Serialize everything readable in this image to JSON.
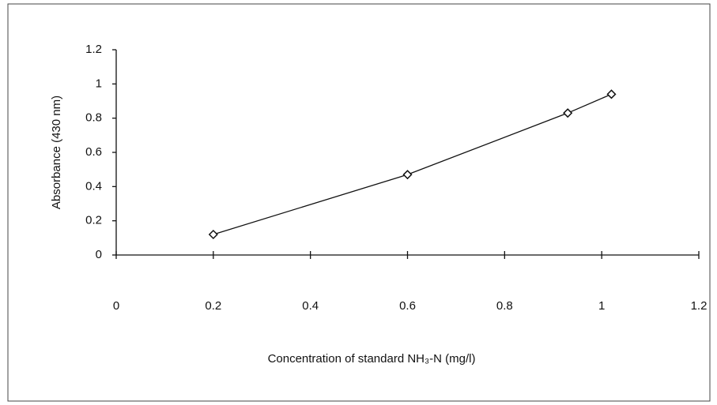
{
  "chart_data": {
    "type": "line",
    "x_label": "Concentration of standard NH₃-N (mg/l)",
    "y_label": "Absorbance (430 nm)",
    "x": [
      0.2,
      0.6,
      0.93,
      1.02
    ],
    "series": [
      {
        "color": "#111111",
        "values": [
          0.12,
          0.47,
          0.83,
          0.94
        ]
      }
    ],
    "xlim": [
      0,
      1.2
    ],
    "xticks": [
      0,
      0.2,
      0.4,
      0.6,
      0.8,
      1,
      1.2
    ],
    "ylim": [
      0,
      1.2
    ],
    "yticks": [
      0,
      0.2,
      0.4,
      0.6,
      0.8,
      1,
      1.2
    ],
    "marker": "diamond",
    "grid": false
  }
}
